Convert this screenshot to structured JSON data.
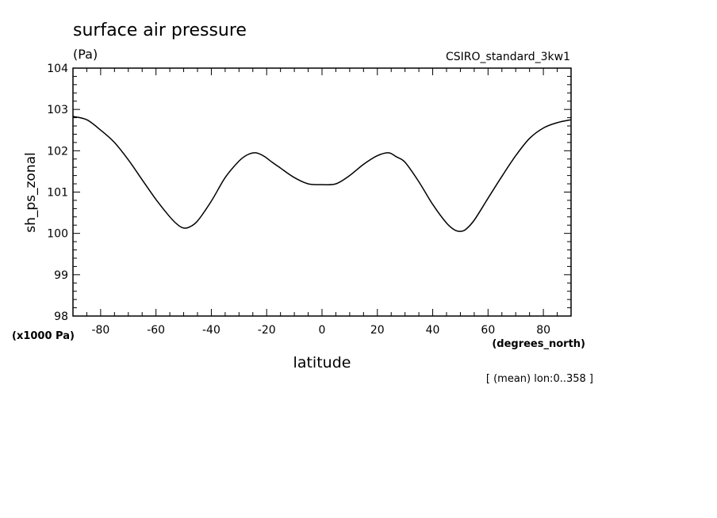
{
  "chart_data": {
    "type": "line",
    "title": "surface air pressure",
    "units": "(Pa)",
    "model": "CSIRO_standard_3kw1",
    "ylabel": "sh_ps_zonal",
    "y_scale_note": "(x1000 Pa)",
    "xlabel": "latitude",
    "x_units": "(degrees_north)",
    "footnote": "[ (mean) lon:0..358 ]",
    "xlim": [
      -90,
      90
    ],
    "ylim": [
      98,
      104
    ],
    "x_ticks": [
      -80,
      -60,
      -40,
      -20,
      0,
      20,
      40,
      60,
      80
    ],
    "x_tick_labels": [
      "-80",
      "-60",
      "-40",
      "-20",
      "0",
      "20",
      "40",
      "60",
      "80"
    ],
    "y_ticks": [
      98,
      99,
      100,
      101,
      102,
      103,
      104
    ],
    "y_tick_labels": [
      "98",
      "99",
      "100",
      "101",
      "102",
      "103",
      "104"
    ],
    "grid": false,
    "color": "#000000",
    "series": [
      {
        "x": [
          -90,
          -85,
          -80,
          -75,
          -70,
          -65,
          -60,
          -55,
          -52,
          -50,
          -48,
          -45,
          -40,
          -35,
          -30,
          -27,
          -24,
          -21,
          -18,
          -15,
          -10,
          -5,
          0,
          5,
          10,
          15,
          20,
          24,
          27,
          30,
          35,
          40,
          45,
          48,
          50,
          52,
          55,
          60,
          65,
          70,
          75,
          80,
          85,
          90
        ],
        "y": [
          102.83,
          102.75,
          102.5,
          102.2,
          101.78,
          101.3,
          100.82,
          100.4,
          100.2,
          100.13,
          100.15,
          100.3,
          100.78,
          101.35,
          101.75,
          101.9,
          101.95,
          101.87,
          101.72,
          101.58,
          101.35,
          101.2,
          101.18,
          101.2,
          101.4,
          101.67,
          101.88,
          101.95,
          101.85,
          101.72,
          101.25,
          100.7,
          100.25,
          100.08,
          100.05,
          100.1,
          100.32,
          100.85,
          101.38,
          101.88,
          102.3,
          102.55,
          102.68,
          102.75
        ]
      }
    ]
  }
}
